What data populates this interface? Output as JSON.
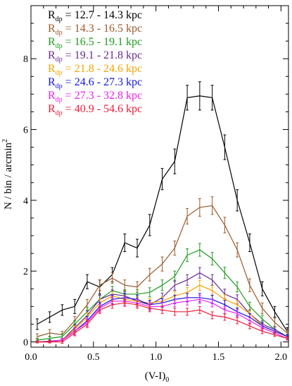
{
  "chart_data": {
    "type": "line",
    "title": "",
    "xlabel": {
      "main": "(V-I)",
      "sub": "0"
    },
    "ylabel": {
      "main": "N / bin / arcmin",
      "sup": "2"
    },
    "xlim": [
      0.0,
      2.06
    ],
    "ylim": [
      -0.15,
      9.5
    ],
    "xticks": [
      0.0,
      0.5,
      1.0,
      1.5,
      2.0
    ],
    "xtick_labels": [
      "0.0",
      "0.5",
      "1.0",
      "1.5",
      "2.0"
    ],
    "yticks": [
      0,
      2,
      4,
      6,
      8
    ],
    "ytick_labels": [
      "0",
      "2",
      "4",
      "6",
      "8"
    ],
    "grid": false,
    "legend_position": "top-left",
    "series": [
      {
        "name_main": "R",
        "name_sub": "dp",
        "name_rest": " = 12.7 - 14.3 kpc",
        "color": "#000000",
        "x": [
          0.05,
          0.15,
          0.25,
          0.35,
          0.45,
          0.55,
          0.65,
          0.75,
          0.85,
          0.95,
          1.05,
          1.15,
          1.25,
          1.35,
          1.45,
          1.55,
          1.65,
          1.75,
          1.85,
          1.95,
          2.05
        ],
        "y": [
          0.5,
          0.7,
          0.9,
          1.0,
          1.7,
          1.55,
          1.9,
          2.8,
          2.65,
          3.3,
          4.6,
          5.1,
          6.9,
          6.95,
          6.9,
          5.5,
          4.0,
          2.8,
          1.5,
          0.85,
          0.3
        ],
        "err": [
          0.15,
          0.15,
          0.15,
          0.2,
          0.2,
          0.2,
          0.2,
          0.25,
          0.25,
          0.3,
          0.3,
          0.35,
          0.35,
          0.4,
          0.35,
          0.35,
          0.3,
          0.25,
          0.2,
          0.15,
          0.1
        ]
      },
      {
        "name_main": "R",
        "name_sub": "dp",
        "name_rest": " = 14.3 - 16.5 kpc",
        "color": "#9b5a2a",
        "x": [
          0.05,
          0.15,
          0.25,
          0.35,
          0.45,
          0.55,
          0.65,
          0.75,
          0.85,
          0.95,
          1.05,
          1.15,
          1.25,
          1.35,
          1.45,
          1.55,
          1.65,
          1.75,
          1.85,
          1.95,
          2.05
        ],
        "y": [
          0.15,
          0.25,
          0.2,
          0.6,
          1.05,
          1.6,
          1.8,
          1.6,
          1.55,
          1.9,
          2.2,
          2.65,
          3.55,
          3.8,
          3.85,
          3.3,
          2.6,
          1.6,
          0.95,
          0.55,
          0.25
        ],
        "err": [
          0.08,
          0.1,
          0.1,
          0.12,
          0.15,
          0.15,
          0.15,
          0.15,
          0.15,
          0.18,
          0.2,
          0.2,
          0.22,
          0.25,
          0.25,
          0.22,
          0.2,
          0.18,
          0.15,
          0.12,
          0.08
        ]
      },
      {
        "name_main": "R",
        "name_sub": "dp",
        "name_rest": " = 16.5 - 19.1 kpc",
        "color": "#1e9b1e",
        "x": [
          0.05,
          0.15,
          0.25,
          0.35,
          0.45,
          0.55,
          0.65,
          0.75,
          0.85,
          0.95,
          1.05,
          1.15,
          1.25,
          1.35,
          1.45,
          1.55,
          1.65,
          1.75,
          1.85,
          1.95,
          2.05
        ],
        "y": [
          0.05,
          0.1,
          0.15,
          0.5,
          0.85,
          1.2,
          1.45,
          1.35,
          1.35,
          1.4,
          1.6,
          1.85,
          2.45,
          2.6,
          2.35,
          1.95,
          1.55,
          1.0,
          0.65,
          0.35,
          0.15
        ],
        "err": [
          0.05,
          0.06,
          0.08,
          0.1,
          0.12,
          0.12,
          0.12,
          0.12,
          0.12,
          0.13,
          0.15,
          0.15,
          0.18,
          0.18,
          0.18,
          0.16,
          0.14,
          0.12,
          0.1,
          0.08,
          0.05
        ]
      },
      {
        "name_main": "R",
        "name_sub": "dp",
        "name_rest": " = 19.1 - 21.8 kpc",
        "color": "#6a2a8f",
        "x": [
          0.05,
          0.15,
          0.25,
          0.35,
          0.45,
          0.55,
          0.65,
          0.75,
          0.85,
          0.95,
          1.05,
          1.15,
          1.25,
          1.35,
          1.45,
          1.55,
          1.65,
          1.75,
          1.85,
          1.95,
          2.05
        ],
        "y": [
          0.0,
          0.02,
          0.05,
          0.4,
          0.75,
          1.2,
          1.35,
          1.3,
          1.15,
          1.05,
          1.25,
          1.6,
          1.75,
          1.95,
          1.75,
          1.35,
          1.2,
          0.8,
          0.5,
          0.35,
          0.15
        ],
        "err": [
          0.03,
          0.04,
          0.05,
          0.1,
          0.12,
          0.12,
          0.12,
          0.12,
          0.12,
          0.12,
          0.13,
          0.14,
          0.15,
          0.15,
          0.15,
          0.14,
          0.13,
          0.11,
          0.09,
          0.07,
          0.05
        ]
      },
      {
        "name_main": "R",
        "name_sub": "dp",
        "name_rest": " = 21.8 - 24.6 kpc",
        "color": "#f5a300",
        "x": [
          0.05,
          0.15,
          0.25,
          0.35,
          0.45,
          0.55,
          0.65,
          0.75,
          0.85,
          0.95,
          1.05,
          1.15,
          1.25,
          1.35,
          1.45,
          1.55,
          1.65,
          1.75,
          1.85,
          1.95,
          2.05
        ],
        "y": [
          0.0,
          0.0,
          0.05,
          0.35,
          0.7,
          1.1,
          1.3,
          1.2,
          1.15,
          1.1,
          1.15,
          1.3,
          1.4,
          1.6,
          1.45,
          1.2,
          1.05,
          0.8,
          0.45,
          0.3,
          0.15
        ],
        "err": [
          0.03,
          0.03,
          0.05,
          0.1,
          0.12,
          0.12,
          0.12,
          0.12,
          0.12,
          0.12,
          0.12,
          0.13,
          0.14,
          0.14,
          0.14,
          0.13,
          0.12,
          0.1,
          0.08,
          0.06,
          0.05
        ]
      },
      {
        "name_main": "R",
        "name_sub": "dp",
        "name_rest": " = 24.6 - 27.3 kpc",
        "color": "#1414e6",
        "x": [
          0.05,
          0.15,
          0.25,
          0.35,
          0.45,
          0.55,
          0.65,
          0.75,
          0.85,
          0.95,
          1.05,
          1.15,
          1.25,
          1.35,
          1.45,
          1.55,
          1.65,
          1.75,
          1.85,
          1.95,
          2.05
        ],
        "y": [
          0.0,
          0.0,
          0.05,
          0.3,
          0.6,
          1.0,
          1.2,
          1.25,
          1.2,
          1.05,
          1.1,
          1.2,
          1.25,
          1.25,
          1.2,
          1.05,
          0.85,
          0.7,
          0.45,
          0.3,
          0.15
        ],
        "err": [
          0.03,
          0.03,
          0.05,
          0.1,
          0.12,
          0.12,
          0.12,
          0.12,
          0.12,
          0.12,
          0.12,
          0.12,
          0.12,
          0.12,
          0.12,
          0.12,
          0.11,
          0.1,
          0.08,
          0.06,
          0.05
        ]
      },
      {
        "name_main": "R",
        "name_sub": "dp",
        "name_rest": " = 27.3 - 32.8 kpc",
        "color": "#f01ef0",
        "x": [
          0.05,
          0.15,
          0.25,
          0.35,
          0.45,
          0.55,
          0.65,
          0.75,
          0.85,
          0.95,
          1.05,
          1.15,
          1.25,
          1.35,
          1.45,
          1.55,
          1.65,
          1.75,
          1.85,
          1.95,
          2.05
        ],
        "y": [
          0.0,
          0.0,
          0.05,
          0.3,
          0.55,
          0.95,
          1.15,
          1.15,
          1.1,
          1.0,
          1.0,
          1.1,
          1.15,
          1.2,
          1.1,
          0.9,
          0.8,
          0.6,
          0.4,
          0.25,
          0.1
        ],
        "err": [
          0.03,
          0.03,
          0.05,
          0.1,
          0.11,
          0.11,
          0.11,
          0.11,
          0.11,
          0.11,
          0.11,
          0.11,
          0.11,
          0.11,
          0.11,
          0.1,
          0.1,
          0.09,
          0.07,
          0.06,
          0.05
        ]
      },
      {
        "name_main": "R",
        "name_sub": "dp",
        "name_rest": " = 40.9 - 54.6 kpc",
        "color": "#ee1c3a",
        "x": [
          0.05,
          0.15,
          0.25,
          0.35,
          0.45,
          0.55,
          0.65,
          0.75,
          0.85,
          0.95,
          1.05,
          1.15,
          1.25,
          1.35,
          1.45,
          1.55,
          1.65,
          1.75,
          1.85,
          1.95,
          2.05
        ],
        "y": [
          0.0,
          0.0,
          0.0,
          0.25,
          0.5,
          0.9,
          1.05,
          1.1,
          1.05,
          0.95,
          0.9,
          0.85,
          0.85,
          0.9,
          0.75,
          0.7,
          0.6,
          0.45,
          0.3,
          0.2,
          0.1
        ],
        "err": [
          0.03,
          0.03,
          0.04,
          0.08,
          0.1,
          0.1,
          0.1,
          0.1,
          0.1,
          0.1,
          0.1,
          0.1,
          0.1,
          0.1,
          0.1,
          0.09,
          0.09,
          0.08,
          0.07,
          0.05,
          0.04
        ]
      }
    ]
  }
}
